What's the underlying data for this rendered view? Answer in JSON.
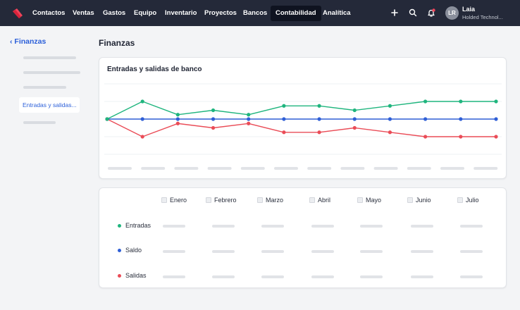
{
  "topbar": {
    "nav": [
      "Contactos",
      "Ventas",
      "Gastos",
      "Equipo",
      "Inventario",
      "Proyectos",
      "Bancos",
      "Contabilidad",
      "Analítica"
    ],
    "active_nav": "Contabilidad",
    "user": {
      "initials": "LR",
      "name": "Laia",
      "company": "Holded Technol..."
    }
  },
  "sidebar": {
    "back_label": "Finanzas",
    "active_item": "Entradas y salidas..."
  },
  "page": {
    "title": "Finanzas"
  },
  "chart_card": {
    "title": "Entradas y salidas de banco"
  },
  "chart_data": {
    "type": "line",
    "x": [
      1,
      2,
      3,
      4,
      5,
      6,
      7,
      8,
      9,
      10,
      11,
      12
    ],
    "series": [
      {
        "name": "Entradas",
        "values": [
          0,
          2,
          0.5,
          1,
          0.5,
          1.5,
          1.5,
          1,
          1.5,
          2,
          2,
          2
        ]
      },
      {
        "name": "Saldo",
        "values": [
          0,
          0,
          0,
          0,
          0,
          0,
          0,
          0,
          0,
          0,
          0,
          0
        ]
      },
      {
        "name": "Salidas",
        "values": [
          0,
          -2,
          -0.5,
          -1,
          -0.5,
          -1.5,
          -1.5,
          -1,
          -1.5,
          -2,
          -2,
          -2
        ]
      }
    ],
    "ylim": [
      -4.5,
      4.5
    ],
    "grid": true,
    "colors": {
      "Entradas": "#1fb57e",
      "Saldo": "#2f5fd6",
      "Salidas": "#ea4c57"
    }
  },
  "table": {
    "months": [
      "Enero",
      "Febrero",
      "Marzo",
      "Abril",
      "Mayo",
      "Junio",
      "Julio"
    ],
    "rows": [
      {
        "label": "Entradas",
        "color": "#1fb57e"
      },
      {
        "label": "Saldo",
        "color": "#2f5fd6"
      },
      {
        "label": "Salidas",
        "color": "#ea4c57"
      }
    ]
  }
}
